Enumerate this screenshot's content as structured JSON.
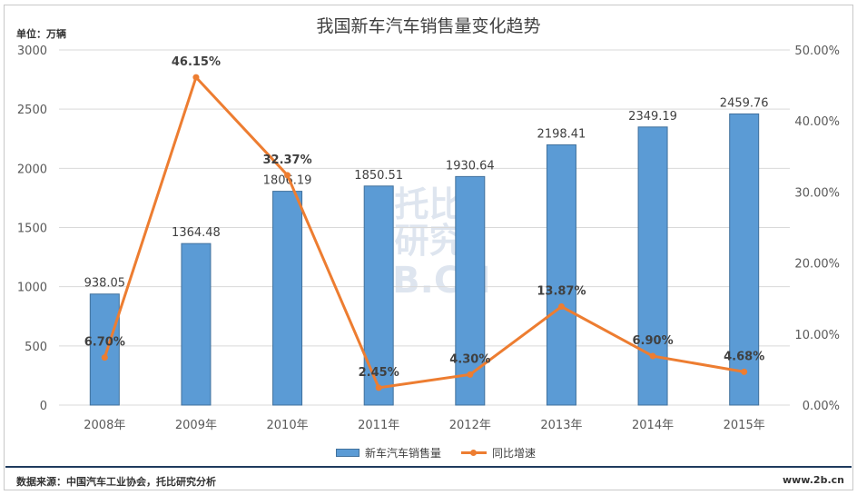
{
  "chart_data": {
    "type": "bar+line",
    "title": "我国新车汽车销售量变化趋势",
    "unit_label": "单位：万辆",
    "categories": [
      "2008年",
      "2009年",
      "2010年",
      "2011年",
      "2012年",
      "2013年",
      "2014年",
      "2015年"
    ],
    "series": [
      {
        "name": "新车汽车销售量",
        "type": "bar",
        "axis": "left",
        "color": "#5b9bd5",
        "values": [
          938.05,
          1364.48,
          1806.19,
          1850.51,
          1930.64,
          2198.41,
          2349.19,
          2459.76
        ],
        "labels": [
          "938.05",
          "1364.48",
          "1806.19",
          "1850.51",
          "1930.64",
          "2198.41",
          "2349.19",
          "2459.76"
        ]
      },
      {
        "name": "同比增速",
        "type": "line",
        "axis": "right",
        "color": "#ed7d31",
        "values": [
          6.7,
          46.15,
          32.37,
          2.45,
          4.3,
          13.87,
          6.9,
          4.68
        ],
        "labels": [
          "6.70%",
          "46.15%",
          "32.37%",
          "2.45%",
          "4.30%",
          "13.87%",
          "6.90%",
          "4.68%"
        ]
      }
    ],
    "y_left": {
      "range": [
        0,
        3000
      ],
      "ticks": [
        "0",
        "500",
        "1000",
        "1500",
        "2000",
        "2500",
        "3000"
      ]
    },
    "y_right": {
      "range": [
        0,
        50
      ],
      "ticks": [
        "0.00%",
        "10.00%",
        "20.00%",
        "30.00%",
        "40.00%",
        "50.00%"
      ]
    },
    "grid": true,
    "legend": "bottom"
  },
  "footer": {
    "source": "数据来源：中国汽车工业协会，托比研究分析",
    "site": "www.2b.cn"
  },
  "watermark": {
    "line1": "托比",
    "line2": "研究",
    "line3": "2B.CN"
  }
}
